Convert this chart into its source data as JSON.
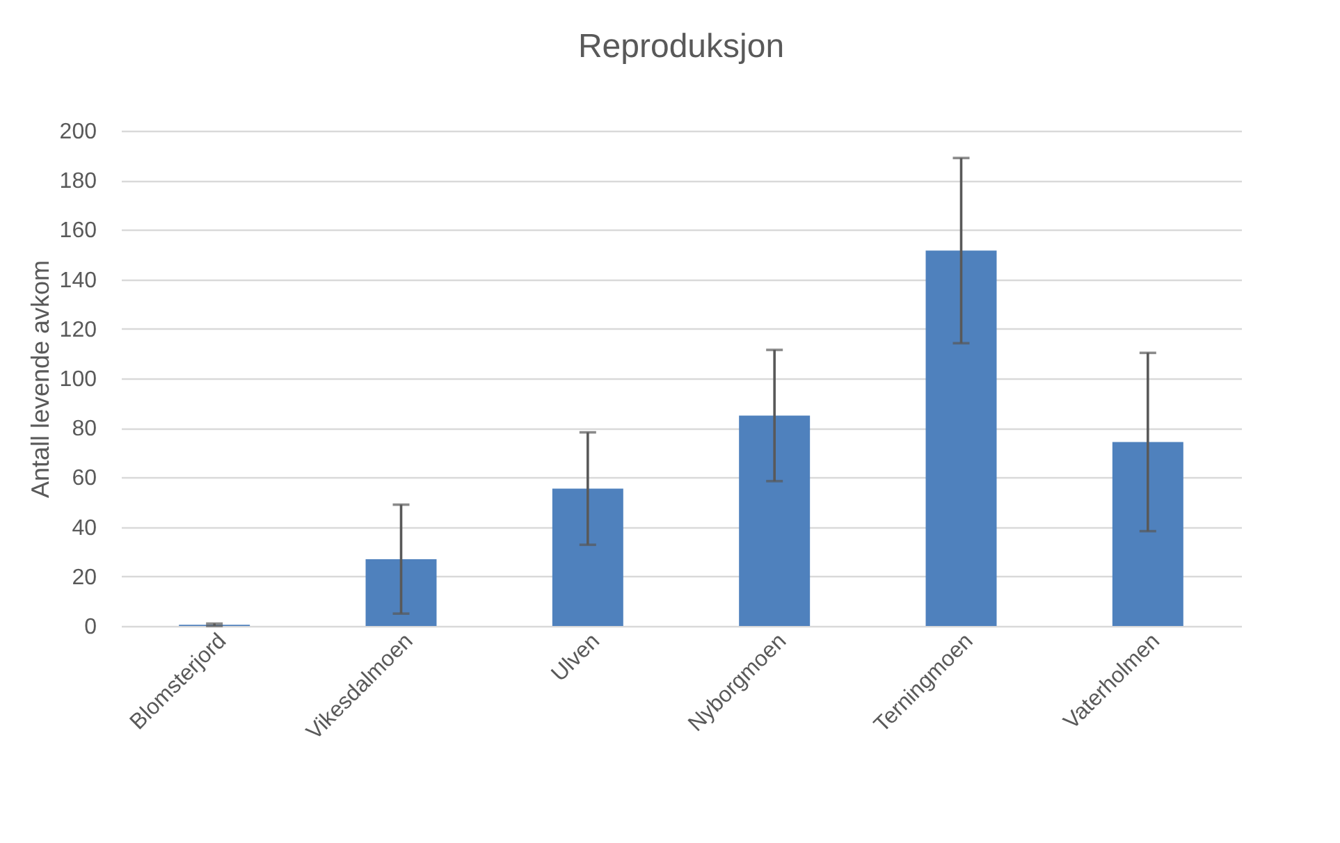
{
  "chart_data": {
    "type": "bar",
    "title": "Reproduksjon",
    "ylabel": "Antall levende avkom",
    "categories": [
      "Blomsterjord",
      "Vikesdalmoen",
      "Ulven",
      "Nyborgmoen",
      "Terningmoen",
      "Vaterholmen"
    ],
    "values": [
      0.5,
      27,
      55.5,
      85,
      151.6,
      74.3
    ],
    "errors": [
      0.5,
      22,
      22.7,
      26.5,
      37.4,
      36
    ],
    "color": "#4f81bd",
    "ylim": [
      0,
      200
    ],
    "yticks": [
      0,
      20,
      40,
      60,
      80,
      100,
      120,
      140,
      160,
      180,
      200
    ],
    "grid": "y"
  }
}
